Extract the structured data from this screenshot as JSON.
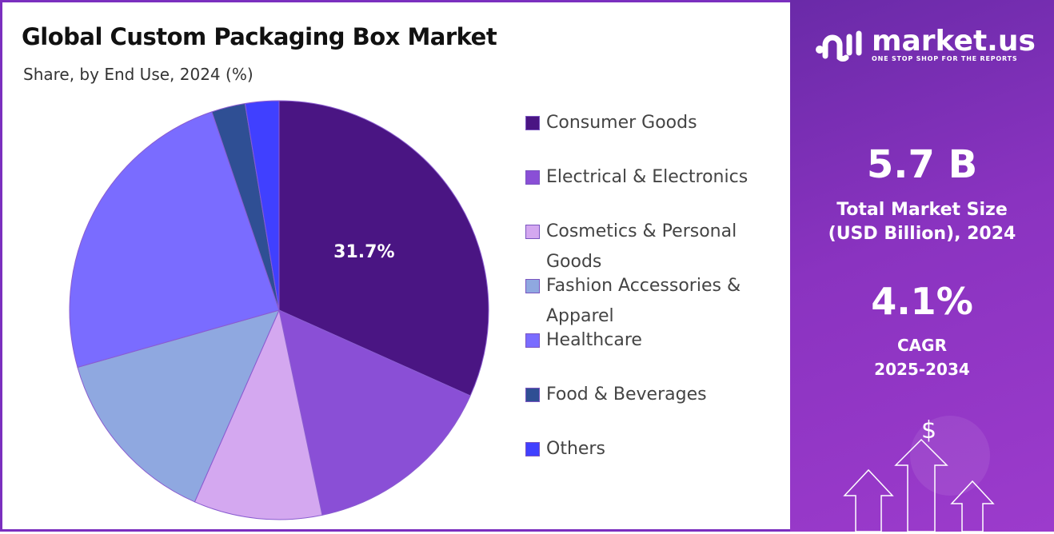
{
  "title": "Global Custom Packaging Box Market",
  "subtitle": "Share, by End Use, 2024 (%)",
  "brand": {
    "name": "market.us",
    "tagline": "ONE STOP SHOP FOR THE REPORTS"
  },
  "stats": {
    "market_size": "5.7 B",
    "market_size_label_1": "Total Market Size",
    "market_size_label_2": "(USD Billion), 2024",
    "cagr": "4.1%",
    "cagr_label_1": "CAGR",
    "cagr_label_2": "2025-2034"
  },
  "chart_data": {
    "type": "pie",
    "title": "Global Custom Packaging Box Market",
    "subtitle": "Share, by End Use, 2024 (%)",
    "legend_position": "right",
    "categories": [
      "Consumer Goods",
      "Electrical & Electronics",
      "Cosmetics & Personal Goods",
      "Fashion Accessories & Apparel",
      "Healthcare",
      "Food & Beverages",
      "Others"
    ],
    "values": [
      31.7,
      15.0,
      9.9,
      14.0,
      24.2,
      2.6,
      2.6
    ],
    "colors": [
      "#4a1583",
      "#8a4fd6",
      "#d4a8f0",
      "#8fa8e0",
      "#7a6cff",
      "#2f4f94",
      "#4040ff"
    ],
    "data_labels": [
      "31.7%"
    ]
  }
}
